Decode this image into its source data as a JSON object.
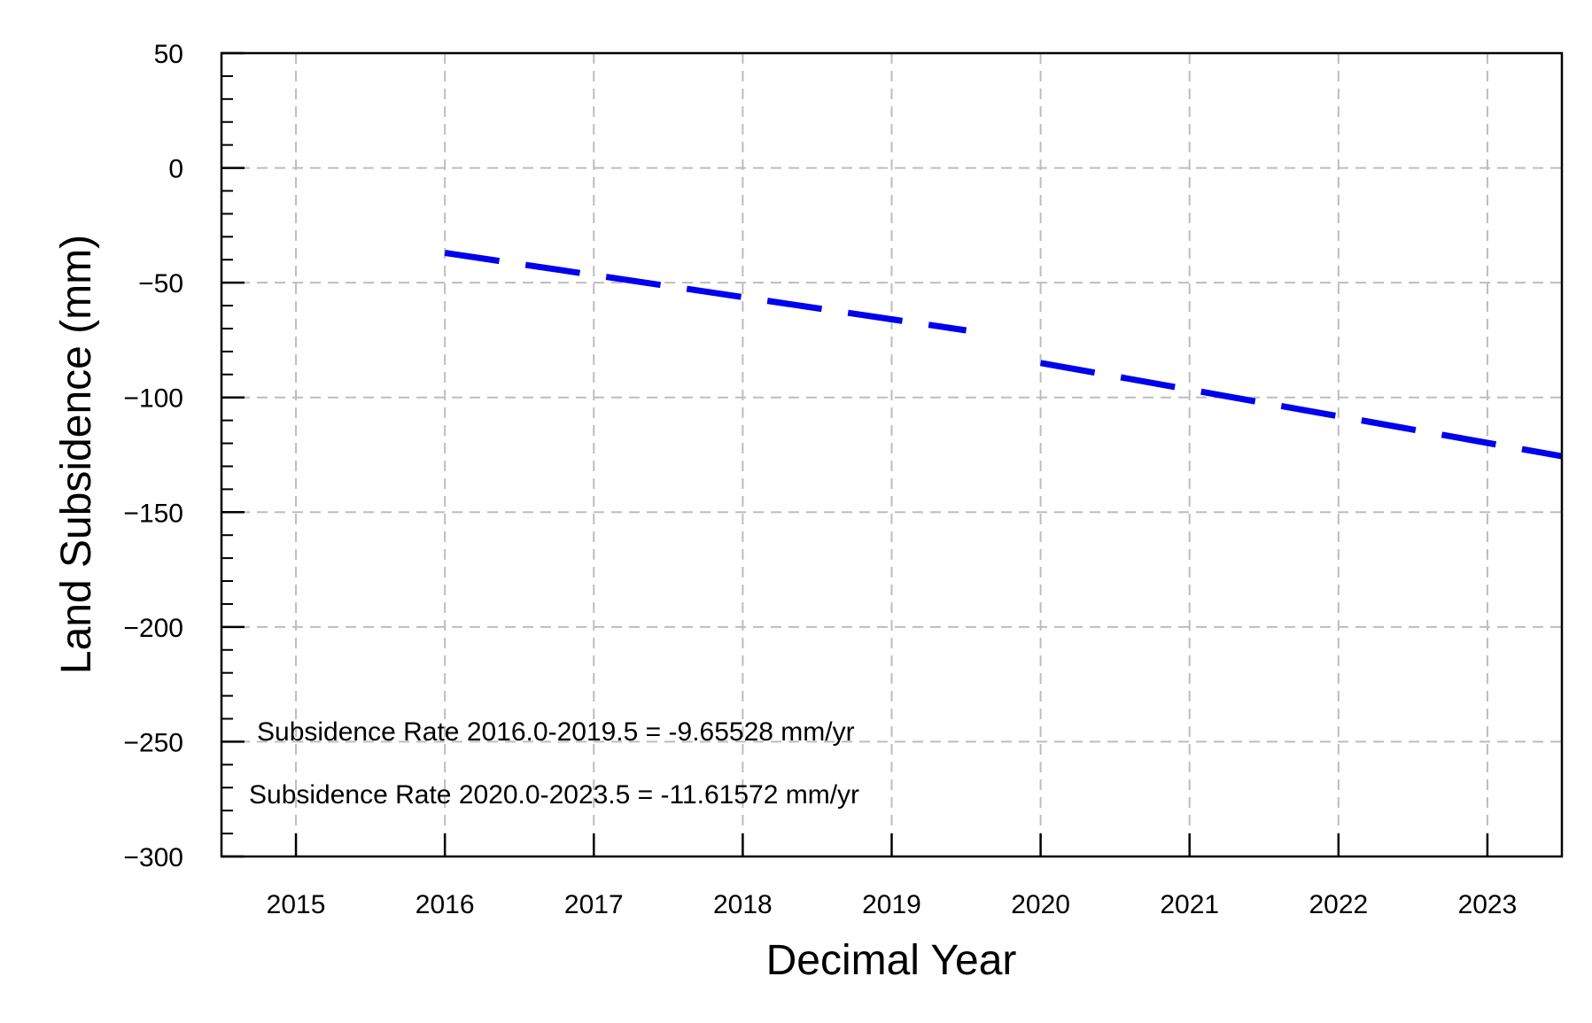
{
  "chart_data": {
    "type": "line",
    "xlabel": "Decimal Year",
    "ylabel": "Land Subsidence (mm)",
    "xlim": [
      2014.5,
      2023.5
    ],
    "ylim": [
      -300,
      50
    ],
    "x_ticks": [
      2015,
      2016,
      2017,
      2018,
      2019,
      2020,
      2021,
      2022,
      2023
    ],
    "x_tick_labels": [
      "2015",
      "2016",
      "2017",
      "2018",
      "2019",
      "2020",
      "2021",
      "2022",
      "2023"
    ],
    "y_ticks": [
      50,
      0,
      -50,
      -100,
      -150,
      -200,
      -250,
      -300
    ],
    "y_tick_labels": [
      "50",
      "0",
      "−50",
      "−100",
      "−150",
      "−200",
      "−250",
      "−300"
    ],
    "grid": true,
    "series": [
      {
        "x": [
          2016.0,
          2019.5
        ],
        "y": [
          -37,
          -70.8
        ],
        "color": "#0000ee",
        "style": "dashed"
      },
      {
        "x": [
          2020.0,
          2023.5
        ],
        "y": [
          -85,
          -125.6
        ],
        "color": "#0000ee",
        "style": "dashed"
      }
    ],
    "annotations": [
      "Subsidence Rate 2016.0-2019.5 = -9.65528 mm/yr",
      "Subsidence Rate 2020.0-2023.5 = -11.61572 mm/yr"
    ]
  }
}
